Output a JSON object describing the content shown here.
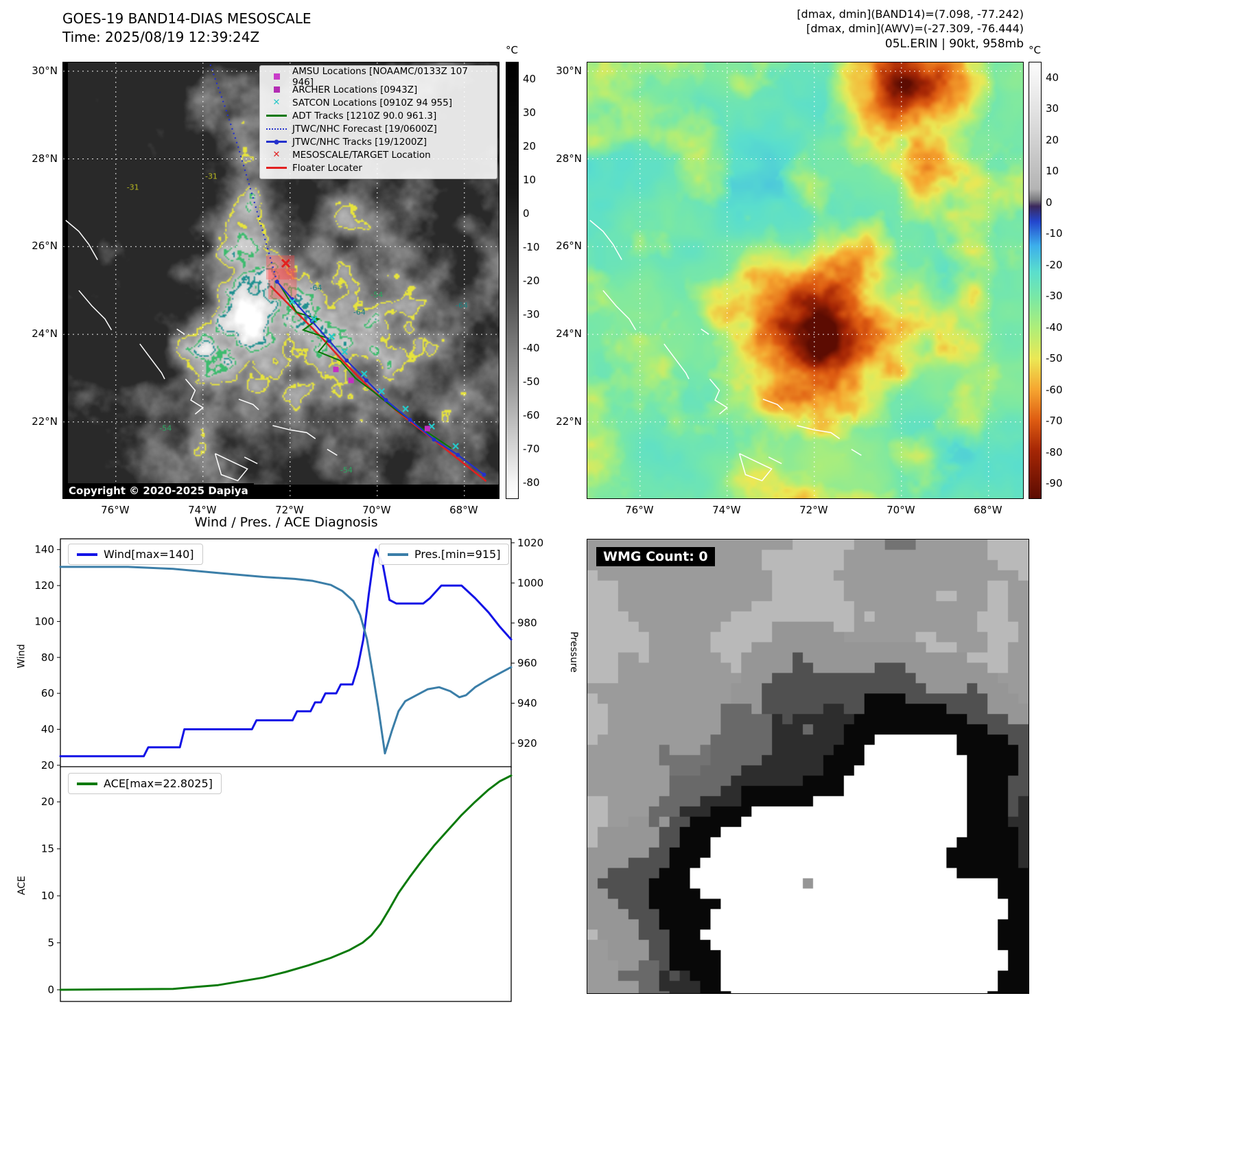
{
  "left_panel": {
    "title": "GOES-19 BAND14-DIAS MESOSCALE",
    "subtitle": "Time: 2025/08/19 12:39:24Z",
    "copyright": "Copyright © 2020-2025 Dapiya",
    "colorbar": {
      "unit": "°C",
      "max": 45,
      "min": -85,
      "ticks": [
        40,
        30,
        20,
        10,
        0,
        -10,
        -20,
        -30,
        -40,
        -50,
        -60,
        -70,
        -80
      ]
    },
    "x_ticks": [
      "76°W",
      "74°W",
      "72°W",
      "70°W",
      "68°W"
    ],
    "x_tick_values": [
      76,
      74,
      72,
      70,
      68
    ],
    "y_ticks": [
      "30°N",
      "28°N",
      "26°N",
      "24°N",
      "22°N"
    ],
    "y_tick_values": [
      30,
      28,
      26,
      24,
      22
    ],
    "legend": [
      {
        "label": "AMSU Locations [NOAAMC/0133Z 107 946]",
        "marker": "square",
        "color": "#c93cc9"
      },
      {
        "label": "ARCHER Locations [0943Z]",
        "marker": "square",
        "color": "#b32cb3"
      },
      {
        "label": "SATCON Locations [0910Z 94 955]",
        "marker": "x",
        "color": "#27c8c8"
      },
      {
        "label": "ADT Tracks [1210Z 90.0 961.3]",
        "marker": "line",
        "color": "#067806"
      },
      {
        "label": "JTWC/NHC Forecast [19/0600Z]",
        "marker": "dotted",
        "color": "#2330cc"
      },
      {
        "label": "JTWC/NHC Tracks [19/1200Z]",
        "marker": "line-dot",
        "color": "#2330cc"
      },
      {
        "label": "MESOSCALE/TARGET Location",
        "marker": "x",
        "color": "#e22020"
      },
      {
        "label": "Floater Locater",
        "marker": "line",
        "color": "#e22020"
      }
    ],
    "contour_labels": [
      {
        "text": "-31",
        "lon": 75.75,
        "lat": 27.3,
        "color": "#b8b820"
      },
      {
        "text": "-31",
        "lon": 73.95,
        "lat": 27.55,
        "color": "#b8b820"
      },
      {
        "text": "-64",
        "lon": 71.55,
        "lat": 25.0,
        "color": "#1a8080"
      },
      {
        "text": "-64",
        "lon": 70.55,
        "lat": 24.45,
        "color": "#1a8080"
      },
      {
        "text": "-54",
        "lon": 70.15,
        "lat": 24.85,
        "color": "#2aa860"
      },
      {
        "text": "-54",
        "lon": 75.0,
        "lat": 21.8,
        "color": "#2aa860"
      },
      {
        "text": "-54",
        "lon": 70.85,
        "lat": 20.85,
        "color": "#2aa860"
      },
      {
        "text": "-64",
        "lon": 68.2,
        "lat": 24.6,
        "color": "#1a8080"
      }
    ],
    "tracks": {
      "jtwc_points": [
        [
          67.55,
          20.8
        ],
        [
          68.15,
          21.25
        ],
        [
          68.7,
          21.6
        ],
        [
          69.25,
          22.05
        ],
        [
          69.8,
          22.5
        ],
        [
          70.25,
          22.95
        ],
        [
          70.7,
          23.4
        ],
        [
          71.1,
          23.85
        ],
        [
          71.5,
          24.3
        ],
        [
          71.95,
          24.8
        ],
        [
          72.3,
          25.2
        ]
      ],
      "forecast_points": [
        [
          72.3,
          25.2
        ],
        [
          72.5,
          25.9
        ],
        [
          72.7,
          26.6
        ],
        [
          72.95,
          27.45
        ],
        [
          73.2,
          28.3
        ],
        [
          73.5,
          29.2
        ],
        [
          73.85,
          30.2
        ]
      ],
      "floater_points": [
        [
          72.45,
          25.1
        ],
        [
          71.9,
          24.55
        ],
        [
          71.3,
          23.95
        ],
        [
          70.75,
          23.35
        ],
        [
          70.2,
          22.8
        ],
        [
          69.55,
          22.25
        ],
        [
          68.9,
          21.75
        ],
        [
          68.2,
          21.2
        ],
        [
          67.5,
          20.65
        ]
      ],
      "adt_points": [
        [
          72.25,
          25.15
        ],
        [
          71.85,
          24.5
        ],
        [
          71.35,
          24.35
        ],
        [
          71.7,
          24.1
        ],
        [
          71.1,
          23.9
        ],
        [
          71.35,
          23.6
        ],
        [
          70.85,
          23.4
        ],
        [
          70.5,
          23.0
        ],
        [
          70.1,
          22.7
        ],
        [
          69.6,
          22.3
        ],
        [
          68.9,
          21.8
        ],
        [
          68.3,
          21.4
        ]
      ],
      "satcon_markers": [
        [
          71.95,
          24.75
        ],
        [
          71.45,
          24.35
        ],
        [
          71.05,
          23.95
        ],
        [
          70.75,
          23.6
        ],
        [
          70.3,
          23.1
        ],
        [
          69.9,
          22.7
        ],
        [
          69.35,
          22.3
        ],
        [
          68.75,
          21.9
        ],
        [
          68.2,
          21.45
        ]
      ],
      "amsu_markers": [
        [
          70.95,
          23.2
        ]
      ],
      "archer_markers": [
        [
          70.6,
          22.95
        ],
        [
          68.85,
          21.85
        ]
      ],
      "target_markers": [
        [
          72.1,
          25.62
        ]
      ],
      "mesoscale_boxes": [
        [
          72.55,
          25.8,
          71.9,
          25.25
        ],
        [
          72.5,
          25.5,
          71.85,
          24.8
        ]
      ]
    }
  },
  "right_panel": {
    "header_lines": [
      "[dmax, dmin](BAND14)=(7.098, -77.242)",
      "[dmax, dmin](AWV)=(-27.309, -76.444)",
      "05L.ERIN | 90kt, 958mb"
    ],
    "colorbar": {
      "unit": "°C",
      "max": 45,
      "min": -95,
      "ticks": [
        40,
        30,
        20,
        10,
        0,
        -10,
        -20,
        -30,
        -40,
        -50,
        -60,
        -70,
        -80,
        -90
      ]
    },
    "x_ticks": [
      "76°W",
      "74°W",
      "72°W",
      "70°W",
      "68°W"
    ],
    "x_tick_values": [
      76,
      74,
      72,
      70,
      68
    ],
    "y_ticks": [
      "30°N",
      "28°N",
      "26°N",
      "24°N",
      "22°N"
    ],
    "y_tick_values": [
      30,
      28,
      26,
      24,
      22
    ]
  },
  "charts": {
    "title": "Wind / Pres. / ACE Diagnosis"
  },
  "chart_data": [
    {
      "type": "line",
      "subplot": "wind_pressure",
      "title": "Wind / Pres. / ACE Diagnosis",
      "x_range": [
        0,
        1
      ],
      "left_axis": {
        "label": "Wind",
        "ticks": [
          20,
          40,
          60,
          80,
          100,
          120,
          140
        ],
        "range": [
          18.8,
          146
        ]
      },
      "right_axis": {
        "label": "Pressure",
        "ticks": [
          920,
          940,
          960,
          980,
          1000,
          1020
        ],
        "range": [
          908,
          1022
        ]
      },
      "series": [
        {
          "name": "Wind[max=140]",
          "color": "#1313e6",
          "axis": "left",
          "points": [
            [
              0,
              25
            ],
            [
              0.185,
              25
            ],
            [
              0.195,
              30
            ],
            [
              0.265,
              30
            ],
            [
              0.275,
              40
            ],
            [
              0.425,
              40
            ],
            [
              0.435,
              45
            ],
            [
              0.515,
              45
            ],
            [
              0.525,
              50
            ],
            [
              0.555,
              50
            ],
            [
              0.565,
              55
            ],
            [
              0.578,
              55
            ],
            [
              0.588,
              60
            ],
            [
              0.612,
              60
            ],
            [
              0.622,
              65
            ],
            [
              0.648,
              65
            ],
            [
              0.66,
              75
            ],
            [
              0.672,
              90
            ],
            [
              0.684,
              115
            ],
            [
              0.695,
              135
            ],
            [
              0.7,
              140
            ],
            [
              0.715,
              132
            ],
            [
              0.73,
              112
            ],
            [
              0.745,
              110
            ],
            [
              0.805,
              110
            ],
            [
              0.82,
              113
            ],
            [
              0.845,
              120
            ],
            [
              0.89,
              120
            ],
            [
              0.92,
              113
            ],
            [
              0.95,
              105
            ],
            [
              0.975,
              97
            ],
            [
              1,
              90
            ]
          ]
        },
        {
          "name": "Pres.[min=915]",
          "color": "#3b7ea8",
          "axis": "right",
          "points": [
            [
              0,
              1008
            ],
            [
              0.15,
              1008
            ],
            [
              0.25,
              1007
            ],
            [
              0.35,
              1005
            ],
            [
              0.45,
              1003
            ],
            [
              0.52,
              1002
            ],
            [
              0.56,
              1001
            ],
            [
              0.6,
              999
            ],
            [
              0.625,
              996
            ],
            [
              0.65,
              991
            ],
            [
              0.665,
              984
            ],
            [
              0.68,
              972
            ],
            [
              0.695,
              952
            ],
            [
              0.705,
              938
            ],
            [
              0.72,
              915
            ],
            [
              0.735,
              926
            ],
            [
              0.75,
              936
            ],
            [
              0.765,
              941
            ],
            [
              0.79,
              944
            ],
            [
              0.815,
              947
            ],
            [
              0.84,
              948
            ],
            [
              0.865,
              946
            ],
            [
              0.885,
              943
            ],
            [
              0.9,
              944
            ],
            [
              0.92,
              948
            ],
            [
              0.95,
              952
            ],
            [
              0.975,
              955
            ],
            [
              1,
              958
            ]
          ]
        }
      ]
    },
    {
      "type": "line",
      "subplot": "ace",
      "x_range": [
        0,
        1
      ],
      "left_axis": {
        "label": "ACE",
        "ticks": [
          0,
          5,
          10,
          15,
          20
        ],
        "range": [
          -1.24,
          23.74
        ]
      },
      "series": [
        {
          "name": "ACE[max=22.8025]",
          "color": "#0a7a0a",
          "axis": "left",
          "points": [
            [
              0,
              0
            ],
            [
              0.15,
              0.05
            ],
            [
              0.25,
              0.1
            ],
            [
              0.3,
              0.3
            ],
            [
              0.35,
              0.5
            ],
            [
              0.4,
              0.9
            ],
            [
              0.45,
              1.3
            ],
            [
              0.5,
              1.9
            ],
            [
              0.55,
              2.6
            ],
            [
              0.6,
              3.4
            ],
            [
              0.64,
              4.2
            ],
            [
              0.67,
              5.0
            ],
            [
              0.69,
              5.8
            ],
            [
              0.71,
              7.0
            ],
            [
              0.73,
              8.6
            ],
            [
              0.75,
              10.3
            ],
            [
              0.775,
              12.0
            ],
            [
              0.8,
              13.6
            ],
            [
              0.83,
              15.4
            ],
            [
              0.86,
              17.0
            ],
            [
              0.89,
              18.6
            ],
            [
              0.92,
              20.0
            ],
            [
              0.95,
              21.3
            ],
            [
              0.975,
              22.2
            ],
            [
              1,
              22.8
            ]
          ]
        }
      ]
    }
  ],
  "wmg_panel": {
    "label": "WMG Count: 0"
  }
}
